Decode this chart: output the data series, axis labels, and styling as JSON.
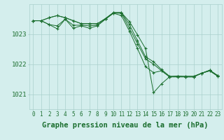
{
  "background_color": "#d4eeed",
  "grid_color": "#aad0cc",
  "line_color": "#1a6e2e",
  "marker_color": "#1a6e2e",
  "xlabel": "Graphe pression niveau de la mer (hPa)",
  "xlabel_fontsize": 7.5,
  "tick_fontsize": 5.5,
  "ytick_fontsize": 6.5,
  "xlim": [
    -0.5,
    23.5
  ],
  "ylim": [
    1020.5,
    1024.0
  ],
  "yticks": [
    1021,
    1022,
    1023
  ],
  "xticks": [
    0,
    1,
    2,
    3,
    4,
    5,
    6,
    7,
    8,
    9,
    10,
    11,
    12,
    13,
    14,
    15,
    16,
    17,
    18,
    19,
    20,
    21,
    22,
    23
  ],
  "series": [
    [
      1023.45,
      1023.45,
      1023.55,
      1023.62,
      1023.55,
      1023.45,
      1023.35,
      1023.35,
      1023.35,
      1023.52,
      1023.72,
      1023.72,
      1023.42,
      1022.98,
      1022.52,
      1021.05,
      1021.35,
      1021.58,
      1021.6,
      1021.58,
      1021.58,
      1021.7,
      1021.8,
      1021.62
    ],
    [
      1023.45,
      1023.45,
      1023.55,
      1023.62,
      1023.55,
      1023.45,
      1023.35,
      1023.35,
      1023.35,
      1023.52,
      1023.72,
      1023.72,
      1023.32,
      1022.78,
      1022.25,
      1022.08,
      1021.82,
      1021.6,
      1021.6,
      1021.6,
      1021.6,
      1021.7,
      1021.8,
      1021.62
    ],
    [
      1023.45,
      1023.45,
      1023.32,
      1023.28,
      1023.5,
      1023.3,
      1023.3,
      1023.28,
      1023.3,
      1023.5,
      1023.7,
      1023.7,
      1023.2,
      1022.68,
      1022.18,
      1022.0,
      1021.78,
      1021.58,
      1021.58,
      1021.58,
      1021.58,
      1021.7,
      1021.78,
      1021.6
    ],
    [
      1023.45,
      1023.45,
      1023.32,
      1023.18,
      1023.5,
      1023.2,
      1023.28,
      1023.2,
      1023.28,
      1023.5,
      1023.7,
      1023.62,
      1023.1,
      1022.52,
      1021.92,
      1021.72,
      1021.78,
      1021.58,
      1021.58,
      1021.58,
      1021.58,
      1021.7,
      1021.78,
      1021.6
    ]
  ]
}
